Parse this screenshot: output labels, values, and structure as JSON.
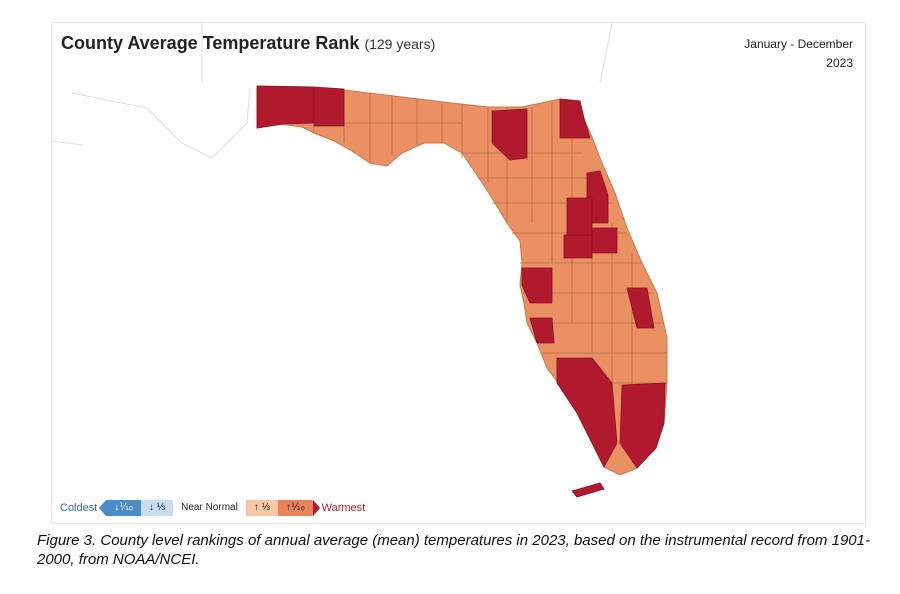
{
  "map": {
    "title": "County Average Temperature Rank",
    "title_sub": "(129 years)",
    "period_line1": "January - December",
    "period_line2": "2023"
  },
  "legend": {
    "coldest": "Coldest",
    "much_below": "↓⅒",
    "below": "↓ ⅓",
    "near_normal": "Near Normal",
    "above": "↑ ⅓",
    "much_above": "↑⅒",
    "warmest": "Warmest",
    "colors": {
      "much_below": "#4a8cc7",
      "below": "#c6dcef",
      "near_normal": "#ffffff",
      "above": "#f9c6a6",
      "much_above": "#e8825a",
      "warmest": "#b0192e",
      "state_above": "#ea9063"
    }
  },
  "caption": "Figure 3. County level rankings of annual average (mean) temperatures in 2023, based on the instrumental record from 1901-2000, from NOAA/NCEI."
}
